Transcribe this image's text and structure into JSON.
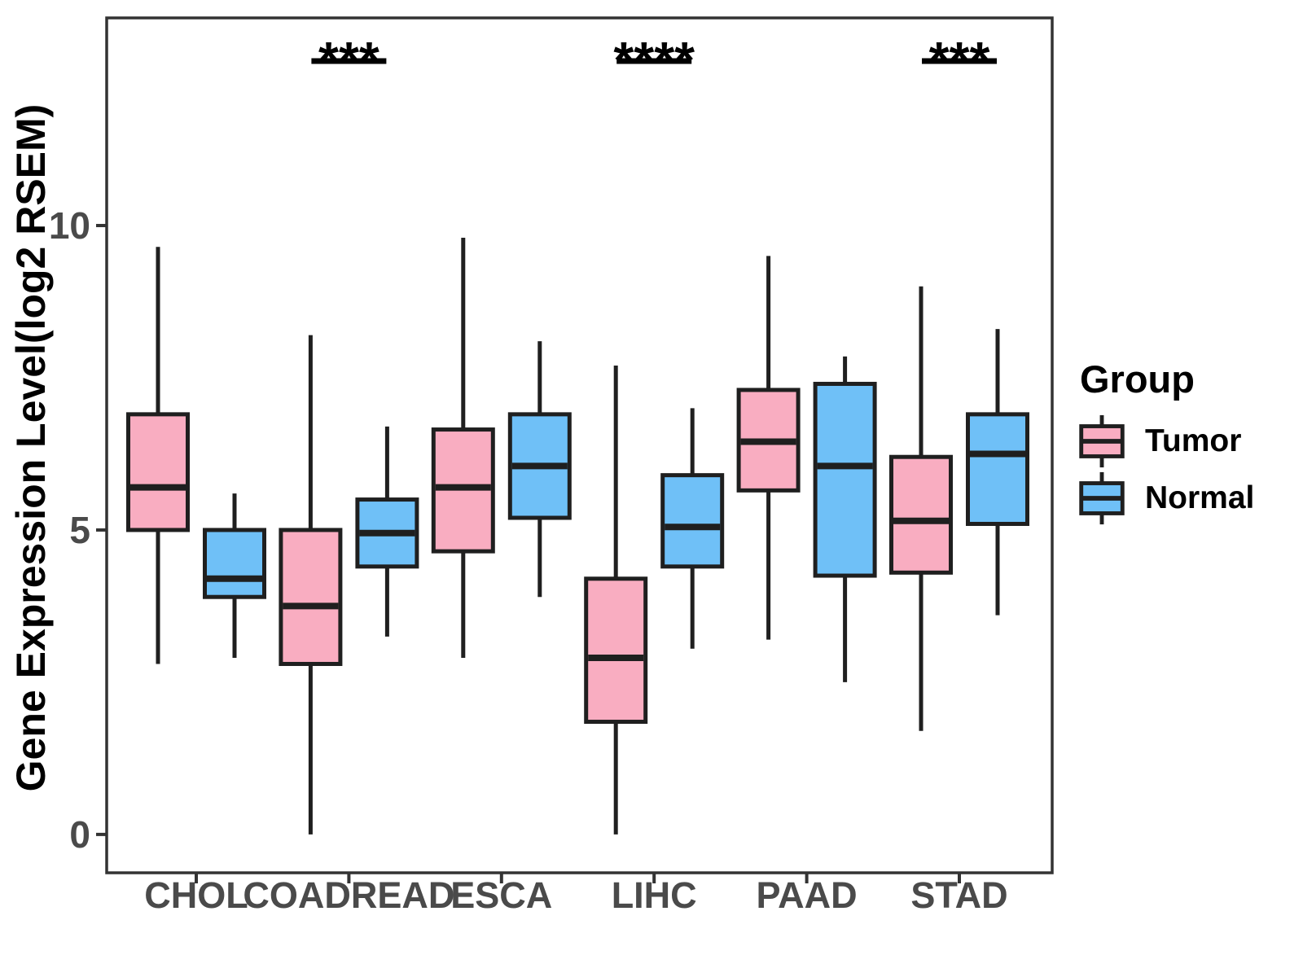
{
  "legend": {
    "title": "Group",
    "items": [
      {
        "label": "Tumor",
        "color": "#F9ADC1"
      },
      {
        "label": "Normal",
        "color": "#6FC0F7"
      }
    ]
  },
  "colors": {
    "box_border": "#1F1F1F",
    "axis": "#333333",
    "tick_label": "#4A4A4A",
    "annotation": "#000000",
    "background": "#FFFFFF"
  },
  "chart_data": {
    "type": "grouped_boxplot",
    "title": "",
    "xlabel": "",
    "ylabel": "Gene Expression Level(log2 RSEM)",
    "categories": [
      "CHOL",
      "COADREAD",
      "ESCA",
      "LIHC",
      "PAAD",
      "STAD"
    ],
    "y_ticks": [
      0,
      5,
      10
    ],
    "ylim": [
      -0.63,
      13.41
    ],
    "grid": false,
    "legend_position": "right",
    "series": [
      {
        "name": "Tumor",
        "color": "#F9ADC1",
        "boxes": [
          {
            "category": "CHOL",
            "low": 2.8,
            "q1": 5.0,
            "median": 5.7,
            "q3": 6.9,
            "high": 9.65
          },
          {
            "category": "COADREAD",
            "low": 0.0,
            "q1": 2.8,
            "median": 3.75,
            "q3": 5.0,
            "high": 8.2
          },
          {
            "category": "ESCA",
            "low": 2.9,
            "q1": 4.65,
            "median": 5.7,
            "q3": 6.65,
            "high": 9.8
          },
          {
            "category": "LIHC",
            "low": 0.0,
            "q1": 1.85,
            "median": 2.9,
            "q3": 4.2,
            "high": 7.7
          },
          {
            "category": "PAAD",
            "low": 3.2,
            "q1": 5.65,
            "median": 6.45,
            "q3": 7.3,
            "high": 9.5
          },
          {
            "category": "STAD",
            "low": 1.7,
            "q1": 4.3,
            "median": 5.15,
            "q3": 6.2,
            "high": 9.0
          }
        ]
      },
      {
        "name": "Normal",
        "color": "#6FC0F7",
        "boxes": [
          {
            "category": "CHOL",
            "low": 2.9,
            "q1": 3.9,
            "median": 4.2,
            "q3": 5.0,
            "high": 5.6
          },
          {
            "category": "COADREAD",
            "low": 3.25,
            "q1": 4.4,
            "median": 4.95,
            "q3": 5.5,
            "high": 6.7
          },
          {
            "category": "ESCA",
            "low": 3.9,
            "q1": 5.2,
            "median": 6.05,
            "q3": 6.9,
            "high": 8.1
          },
          {
            "category": "LIHC",
            "low": 3.05,
            "q1": 4.4,
            "median": 5.05,
            "q3": 5.9,
            "high": 7.0
          },
          {
            "category": "PAAD",
            "low": 2.5,
            "q1": 4.25,
            "median": 6.05,
            "q3": 7.4,
            "high": 7.85
          },
          {
            "category": "STAD",
            "low": 3.6,
            "q1": 5.1,
            "median": 6.25,
            "q3": 6.9,
            "high": 8.3
          }
        ]
      }
    ],
    "annotations": [
      {
        "category": "COADREAD",
        "label": "***"
      },
      {
        "category": "LIHC",
        "label": "****"
      },
      {
        "category": "STAD",
        "label": "***"
      }
    ]
  }
}
